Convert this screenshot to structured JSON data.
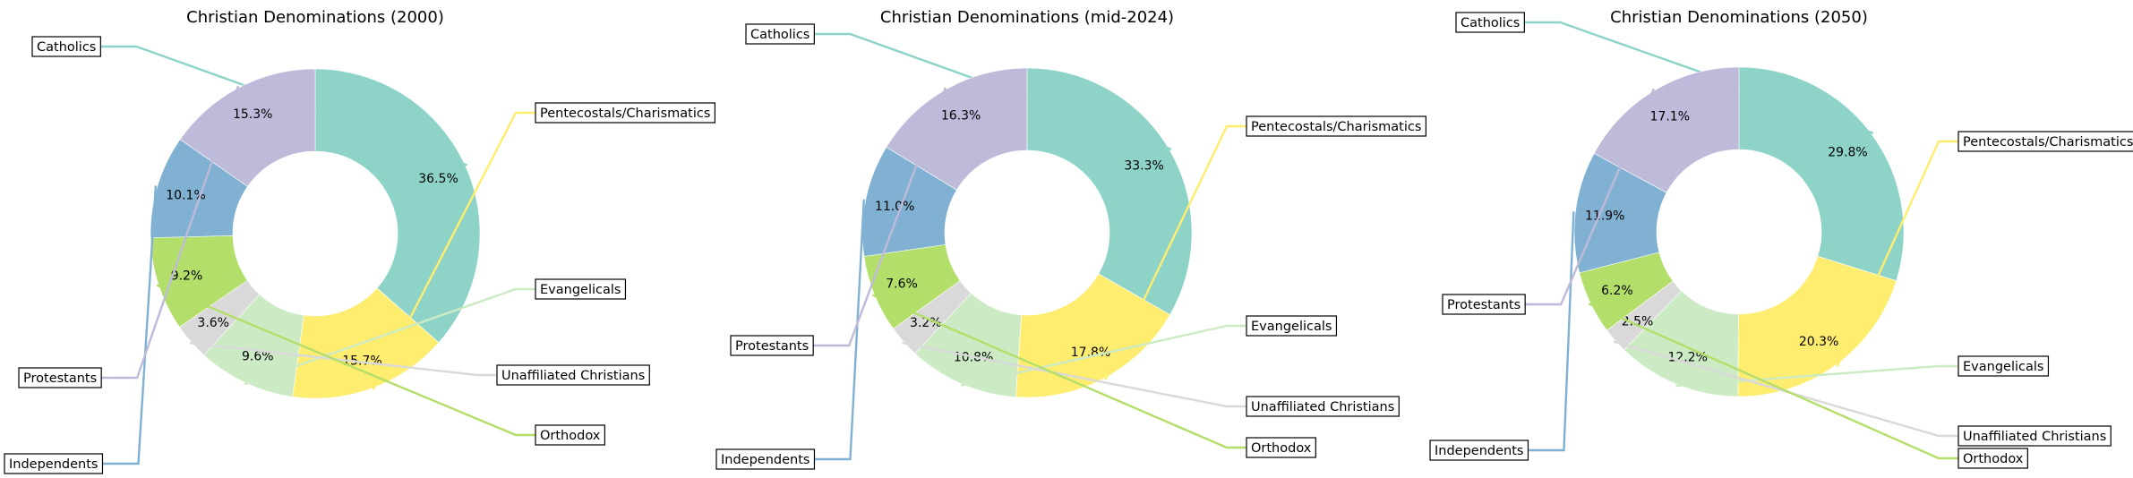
{
  "chart_data": [
    {
      "type": "pie",
      "style": "donut",
      "title": "Christian Denominations (2000)",
      "categories": [
        "Catholics",
        "Pentecostals/Charismatics",
        "Evangelicals",
        "Unaffiliated Christians",
        "Orthodox",
        "Independents",
        "Protestants"
      ],
      "values": [
        36.5,
        15.7,
        9.6,
        3.6,
        9.2,
        10.1,
        15.3
      ],
      "value_labels": [
        "36.5%",
        "15.7%",
        "9.6%",
        "3.6%",
        "9.2%",
        "10.1%",
        "15.3%"
      ]
    },
    {
      "type": "pie",
      "style": "donut",
      "title": "Christian Denominations (mid-2024)",
      "categories": [
        "Catholics",
        "Pentecostals/Charismatics",
        "Evangelicals",
        "Unaffiliated Christians",
        "Orthodox",
        "Independents",
        "Protestants"
      ],
      "values": [
        33.3,
        17.8,
        10.8,
        3.2,
        7.6,
        11.0,
        16.3
      ],
      "value_labels": [
        "33.3%",
        "17.8%",
        "10.8%",
        "3.2%",
        "7.6%",
        "11.0%",
        "16.3%"
      ]
    },
    {
      "type": "pie",
      "style": "donut",
      "title": "Christian Denominations (2050)",
      "categories": [
        "Catholics",
        "Pentecostals/Charismatics",
        "Evangelicals",
        "Unaffiliated Christians",
        "Orthodox",
        "Independents",
        "Protestants"
      ],
      "values": [
        29.8,
        20.3,
        12.2,
        2.5,
        6.2,
        11.9,
        17.1
      ],
      "value_labels": [
        "29.8%",
        "20.3%",
        "12.2%",
        "2.5%",
        "6.2%",
        "11.9%",
        "17.1%"
      ]
    }
  ],
  "colors": {
    "Catholics": "#8dd3c7",
    "Pentecostals/Charismatics": "#ffed6f",
    "Evangelicals": "#ccebc5",
    "Unaffiliated Christians": "#d9d9d9",
    "Orthodox": "#b3de69",
    "Independents": "#80b1d3",
    "Protestants": "#bebada"
  },
  "legend": "none"
}
